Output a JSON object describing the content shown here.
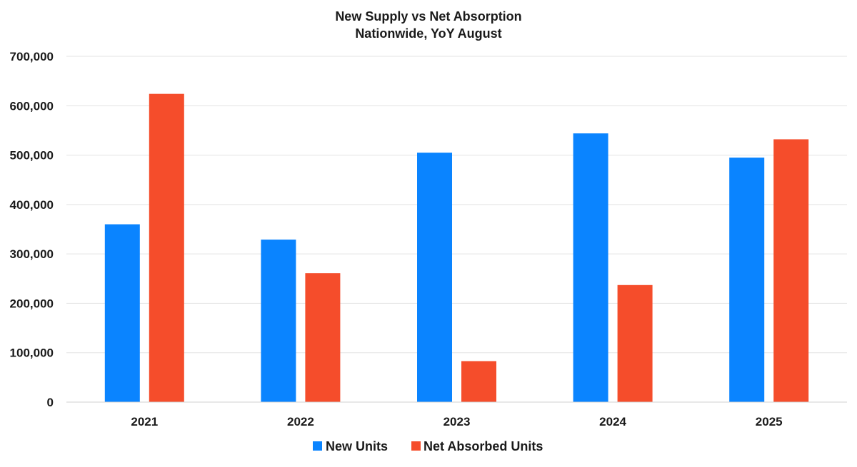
{
  "chart_data": {
    "type": "bar",
    "title": "New Supply vs Net Absorption",
    "subtitle": "Nationwide, YoY August",
    "categories": [
      "2021",
      "2022",
      "2023",
      "2024",
      "2025"
    ],
    "series": [
      {
        "name": "New Units",
        "color": "#0a84ff",
        "values": [
          360000,
          329000,
          505000,
          544000,
          495000
        ]
      },
      {
        "name": "Net Absorbed Units",
        "color": "#f54d2b",
        "values": [
          624000,
          261000,
          83000,
          237000,
          532000
        ]
      }
    ],
    "ylim": [
      0,
      700000
    ],
    "yticks": [
      0,
      100000,
      200000,
      300000,
      400000,
      500000,
      600000,
      700000
    ],
    "ytick_labels": [
      "0",
      "100,000",
      "200,000",
      "300,000",
      "400,000",
      "500,000",
      "600,000",
      "700,000"
    ],
    "xlabel": "",
    "ylabel": "",
    "grid": true,
    "legend_position": "bottom"
  }
}
